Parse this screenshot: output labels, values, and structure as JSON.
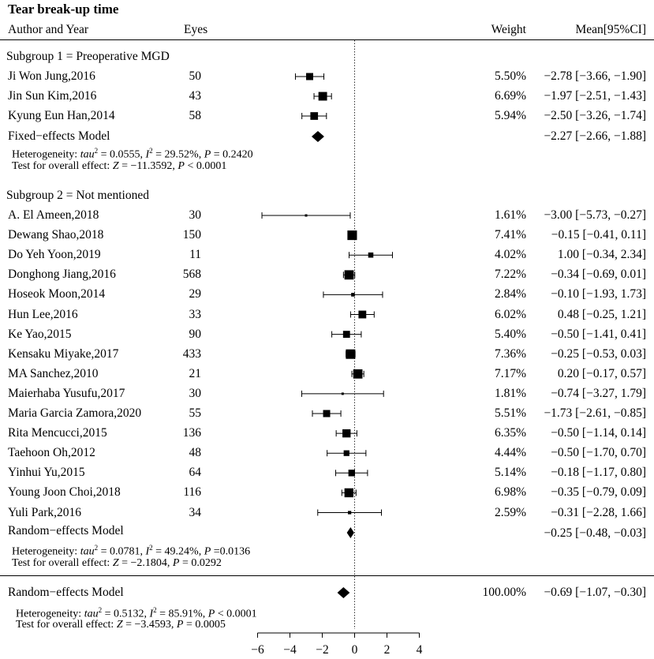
{
  "chart_data": {
    "type": "forest",
    "title": "Tear break-up time",
    "headers": {
      "study": "Author and Year",
      "eyes": "Eyes",
      "weight": "Weight",
      "ci": "Mean[95%CI]"
    },
    "x_axis": {
      "ticks": [
        -6,
        -4,
        -2,
        0,
        2,
        4
      ],
      "tick_labels": [
        "−6",
        "−4",
        "−2",
        "0",
        "2",
        "4"
      ],
      "range": [
        -6,
        4
      ],
      "reference_line": 0
    },
    "subgroups": [
      {
        "label": "Subgroup 1 = Preoperative MGD",
        "studies": [
          {
            "name": "Ji Won Jung,2016",
            "eyes": "50",
            "weight": "5.50%",
            "ci_text": "−2.78 [−3.66, −1.90]",
            "mean": -2.78,
            "lower": -3.66,
            "upper": -1.9,
            "w": 5.5
          },
          {
            "name": "Jin Sun Kim,2016",
            "eyes": "43",
            "weight": "6.69%",
            "ci_text": "−1.97 [−2.51, −1.43]",
            "mean": -1.97,
            "lower": -2.51,
            "upper": -1.43,
            "w": 6.69
          },
          {
            "name": "Kyung Eun Han,2014",
            "eyes": "58",
            "weight": "5.94%",
            "ci_text": "−2.50 [−3.26, −1.74]",
            "mean": -2.5,
            "lower": -3.26,
            "upper": -1.74,
            "w": 5.94
          }
        ],
        "pooled": {
          "label": "Fixed−effects Model",
          "ci_text": "−2.27 [−2.66, −1.88]",
          "mean": -2.27,
          "lower": -2.66,
          "upper": -1.88
        },
        "heterogeneity": {
          "prefix": "Heterogeneity: ",
          "tau2_label": "tau",
          "tau2_value": " = 0.0555, ",
          "i2_label": "I",
          "i2_value": " = 29.52%, ",
          "p_label": "P",
          "p_value": " = 0.2420"
        },
        "overall": {
          "prefix": "Test for overall effect: ",
          "z_label": "Z",
          "z_value": " = −11.3592, ",
          "p_label": "P",
          "p_value": " < 0.0001"
        }
      },
      {
        "label": "Subgroup 2 = Not mentioned",
        "studies": [
          {
            "name": "A. El Ameen,2018",
            "eyes": "30",
            "weight": "1.61%",
            "ci_text": "−3.00 [−5.73, −0.27]",
            "mean": -3.0,
            "lower": -5.73,
            "upper": -0.27,
            "w": 1.61
          },
          {
            "name": "Dewang Shao,2018",
            "eyes": "150",
            "weight": "7.41%",
            "ci_text": "−0.15 [−0.41, 0.11]",
            "mean": -0.15,
            "lower": -0.41,
            "upper": 0.11,
            "w": 7.41
          },
          {
            "name": "Do Yeh Yoon,2019",
            "eyes": "11",
            "weight": "4.02%",
            "ci_text": "1.00 [−0.34, 2.34]",
            "mean": 1.0,
            "lower": -0.34,
            "upper": 2.34,
            "w": 4.02
          },
          {
            "name": "Donghong Jiang,2016",
            "eyes": "568",
            "weight": "7.22%",
            "ci_text": "−0.34 [−0.69, 0.01]",
            "mean": -0.34,
            "lower": -0.69,
            "upper": 0.01,
            "w": 7.22
          },
          {
            "name": "Hoseok Moon,2014",
            "eyes": "29",
            "weight": "2.84%",
            "ci_text": "−0.10 [−1.93, 1.73]",
            "mean": -0.1,
            "lower": -1.93,
            "upper": 1.73,
            "w": 2.84
          },
          {
            "name": "Hun Lee,2016",
            "eyes": "33",
            "weight": "6.02%",
            "ci_text": "0.48 [−0.25, 1.21]",
            "mean": 0.48,
            "lower": -0.25,
            "upper": 1.21,
            "w": 6.02
          },
          {
            "name": "Ke Yao,2015",
            "eyes": "90",
            "weight": "5.40%",
            "ci_text": "−0.50 [−1.41, 0.41]",
            "mean": -0.5,
            "lower": -1.41,
            "upper": 0.41,
            "w": 5.4
          },
          {
            "name": "Kensaku Miyake,2017",
            "eyes": "433",
            "weight": "7.36%",
            "ci_text": "−0.25 [−0.53, 0.03]",
            "mean": -0.25,
            "lower": -0.53,
            "upper": 0.03,
            "w": 7.36
          },
          {
            "name": "MA Sanchez,2010",
            "eyes": "21",
            "weight": "7.17%",
            "ci_text": "0.20 [−0.17, 0.57]",
            "mean": 0.2,
            "lower": -0.17,
            "upper": 0.57,
            "w": 7.17
          },
          {
            "name": "Maierhaba Yusufu,2017",
            "eyes": "30",
            "weight": "1.81%",
            "ci_text": "−0.74 [−3.27, 1.79]",
            "mean": -0.74,
            "lower": -3.27,
            "upper": 1.79,
            "w": 1.81
          },
          {
            "name": "Maria Garcia Zamora,2020",
            "eyes": "55",
            "weight": "5.51%",
            "ci_text": "−1.73 [−2.61, −0.85]",
            "mean": -1.73,
            "lower": -2.61,
            "upper": -0.85,
            "w": 5.51
          },
          {
            "name": "Rita Mencucci,2015",
            "eyes": "136",
            "weight": "6.35%",
            "ci_text": "−0.50 [−1.14, 0.14]",
            "mean": -0.5,
            "lower": -1.14,
            "upper": 0.14,
            "w": 6.35
          },
          {
            "name": "Taehoon Oh,2012",
            "eyes": "48",
            "weight": "4.44%",
            "ci_text": "−0.50 [−1.70, 0.70]",
            "mean": -0.5,
            "lower": -1.7,
            "upper": 0.7,
            "w": 4.44
          },
          {
            "name": "Yinhui Yu,2015",
            "eyes": "64",
            "weight": "5.14%",
            "ci_text": "−0.18 [−1.17, 0.80]",
            "mean": -0.18,
            "lower": -1.17,
            "upper": 0.8,
            "w": 5.14
          },
          {
            "name": "Young Joon Choi,2018",
            "eyes": "116",
            "weight": "6.98%",
            "ci_text": "−0.35 [−0.79, 0.09]",
            "mean": -0.35,
            "lower": -0.79,
            "upper": 0.09,
            "w": 6.98
          },
          {
            "name": "Yuli Park,2016",
            "eyes": "34",
            "weight": "2.59%",
            "ci_text": "−0.31 [−2.28, 1.66]",
            "mean": -0.31,
            "lower": -2.28,
            "upper": 1.66,
            "w": 2.59
          }
        ],
        "pooled": {
          "label": "Random−effects Model",
          "ci_text": "−0.25 [−0.48, −0.03]",
          "mean": -0.25,
          "lower": -0.48,
          "upper": -0.03
        },
        "heterogeneity": {
          "prefix": "Heterogeneity: ",
          "tau2_label": "tau",
          "tau2_value": " = 0.0781, ",
          "i2_label": "I",
          "i2_value": " = 49.24%, ",
          "p_label": "P",
          "p_value": " =0.0136"
        },
        "overall": {
          "prefix": "Test for overall effect: ",
          "z_label": "Z",
          "z_value": " = −2.1804, ",
          "p_label": "P",
          "p_value": " = 0.0292"
        }
      }
    ],
    "overall": {
      "pooled": {
        "label": "Random−effects Model",
        "weight": "100.00%",
        "ci_text": "−0.69 [−1.07, −0.30]",
        "mean": -0.69,
        "lower": -1.07,
        "upper": -0.3
      },
      "heterogeneity": {
        "prefix": "Heterogeneity: ",
        "tau2_label": "tau",
        "tau2_value": " = 0.5132, ",
        "i2_label": "I",
        "i2_value": " = 85.91%, ",
        "p_label": "P",
        "p_value": " < 0.0001"
      },
      "overall": {
        "prefix": "Test for overall effect: ",
        "z_label": "Z",
        "z_value": " = −3.4593, ",
        "p_label": "P",
        "p_value": " = 0.0005"
      }
    }
  }
}
